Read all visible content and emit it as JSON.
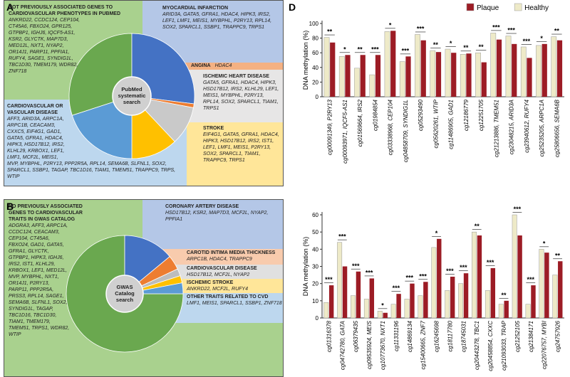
{
  "panel_labels": [
    "A",
    "B",
    "D"
  ],
  "chart_data": [
    {
      "type": "pie",
      "center_label": "PubMed systematic search",
      "boxes": [
        {
          "title": "NOT PREVIOUSLY ASSOCIATED GENES TO CARDIOVASCULAR PHENOTYPES IN PUBMED",
          "genes": "ANKRD22, CCDC124, CEP104, CT45A6, FBXO24, GPR125, GTPBP1, IGHJ6, IQCF5-AS1, KSR2, GLYCTK, MAP7D3, MED12L, NXT1, NYAP2, OR14J1, PARP11, PPFIA1, RUFY4, SAGE1, SYNDIG1L, TBC1D30, TMEM179, WDR82, ZNF718",
          "value": 30,
          "color": "#6aa84f",
          "background": "#a9d18e"
        },
        {
          "title": "MYOCARDIAL INFARCTION",
          "genes": "ARID3A, GATA5, GFRA1, HDAC4, HIPK3, IRS2, LEF1, LMF1, MEIS1, MYBPHL, P2RY13, RPL14, SOX2, SPARCL1, SSBP1, TRAPPC9, TRPS1",
          "value": 27,
          "color": "#4472c4",
          "background": "#b4c7e7"
        },
        {
          "title": "ANGINA",
          "genes": "HDAC4",
          "value": 1,
          "color": "#ed7d31",
          "background": "#f4b183"
        },
        {
          "title": "ISCHEMIC HEART DISEASE",
          "genes": "GATA5, GFRA1, HDAC4, HIPK3, HSD17B12, IRS2, KLHL29, LEF1, MEIS1, MYBPHL, P2RY13, RPL14, SOX2, SPARCL1, TIAM1, TRPS1",
          "value": 10,
          "color": "#c9c9c9",
          "background": "#e7e6e6"
        },
        {
          "title": "STROKE",
          "genes": "EIF4G1, GATA5, GFRA1, HDAC4, HIPK3, HSD17B12, IRS2, IST1, LEF1, LMF1, MEIS1, P2RY13, SOX2, SPARCL1, TIAM1, TRAPPC9, TRPS1",
          "value": 12,
          "color": "#ffc000",
          "background": "#ffe699"
        },
        {
          "title": "CARDIOVASCULAR OR VASCULAR DISEASE",
          "genes": "AFF3, ARID3A, ARPC1A, ARPC1B, CEACAM3, CXXC5, EIF4G1, GAD1, GATA5, GFRA1, HDAC4, HIPK3, HSD17B12, IRS2, KLHL29, KRBOX1, LEF1, LMF1, MCF2L, MEIS1, MVP, MYBPHL, P2RY13, PPP2R5A, RPL14, SEMA6B, SLFNL1, SOX2, SPARCL1, SSBP1, TAGAP, TBC1D16, TIAM1, TMEM51, TRAPPC9, TRPS, WTIP",
          "value": 20,
          "color": "#5b9bd5",
          "background": "#bdd7ee"
        }
      ]
    },
    {
      "type": "pie",
      "center_label": "GWAS Catalog search",
      "boxes": [
        {
          "title": "NO PREVIOUSLY ASSOCIATED GENES TO CARDIOVASCULAR TRAITS IN GWAS CATALOG",
          "genes": "ADGRA3, AFF3, ARPC1A, CCDC124, CEACAM3, CEP104, CT45A6, FBXO24, GAD1, GATA5, GFRA1, GLYCTK, GTPBP1, HIPK3, IGHJ6, IRS2, IST1, KLHL29, KRBOX1, LEF1, MED12L, MVP, MYBPHL, NXT1, OR14J1, P2RY13, PARP11, PPP2R5A, PRSS3, RPL14, SAGE1, SEMA6B, SLFNL1, SOX2, SYNDIG1L, TAGAP, TBC1D16, TBC1D30, TIAM1, TMEM179, TMEM51, TRPS1, WDR82, WTIP",
          "value": 75,
          "color": "#6aa84f",
          "background": "#a9d18e"
        },
        {
          "title": "CORONARY ARTERY DISEASE",
          "genes": "HSD17B12, KSR2, MAP7D3, MCF2L, NYAP2, PPFIA1",
          "value": 14,
          "color": "#4472c4",
          "background": "#b4c7e7"
        },
        {
          "title": "CAROTID INTIMA MEDIA THICKNESS",
          "genes": "ARPC1B, HDAC4, TRAPPC9",
          "value": 4,
          "color": "#ed7d31",
          "background": "#f8cbad"
        },
        {
          "title": "CARDIOVASCULAR DISEASE",
          "genes": "HSD17B12, MCF2L, NYAP2",
          "value": 2,
          "color": "#bdbdbd",
          "background": "#e0e0e0"
        },
        {
          "title": "ISCHEMIC STROKE",
          "genes": "ANKRD22, MCF2L, RUFY4",
          "value": 2,
          "color": "#ffc000",
          "background": "#ffe699"
        },
        {
          "title": "OTHER TRAITS RELATED TO CVD",
          "genes": "LMF1, MEIS1, SPARCL1, SSBP1, ZNF718",
          "value": 3,
          "color": "#5b9bd5",
          "background": "#bdd7ee"
        }
      ]
    },
    {
      "type": "bar",
      "ylabel": "DNA methylation (%)",
      "categories": [
        "cg00091349, P2RY13",
        "cg00093971, IQCF5-AS1",
        "cg01569664, IRS2",
        "cg01984854",
        "cg03338968, CEP104",
        "cg04858709, SYNDIG1L",
        "cg05293490",
        "cg05620261, WTIP",
        "cg11486905, GAD1",
        "cg12186779",
        "cg12251705",
        "cg21213886, TMEM51",
        "cg23048215, ARID3A",
        "cg23940612, RUFY4",
        "cg25235205, ARPC1A",
        "cg25806656, SEMA6B"
      ],
      "series": [
        {
          "name": "Plaque",
          "color": "#9c1c25",
          "values": [
            74,
            57,
            57,
            57,
            90,
            55,
            77,
            61,
            60,
            59,
            47,
            78,
            72,
            53,
            72,
            77
          ]
        },
        {
          "name": "Healthy",
          "color": "#eeeac8",
          "values": [
            81,
            55,
            39,
            30,
            89,
            48,
            85,
            63,
            65,
            58,
            60,
            87,
            83,
            68,
            70,
            82
          ]
        }
      ],
      "significance": [
        "**",
        "*",
        "**",
        "***",
        "*",
        "***",
        "***",
        "**",
        "*",
        "**",
        "**",
        "***",
        "***",
        "***",
        "*",
        "**"
      ],
      "ylim": [
        0,
        100
      ],
      "yticks": [
        0,
        20,
        40,
        60,
        80,
        100
      ]
    },
    {
      "type": "bar",
      "ylabel": "DNA methylation (%)",
      "categories": [
        "cg01316378",
        "cg04742780, GATA",
        "cg06379435",
        "cg09535924, MEIS",
        "cg10773670, NXT1",
        "cg11331196",
        "cg14869134",
        "cg15400665, ZNF7",
        "cg16245698",
        "cg18117780",
        "cg18745031",
        "cg20443278, TBC1",
        "cg20458854, CXXC",
        "cg21093033, TRAP",
        "cg21252105",
        "cg21384171",
        "cg22076757, MYBI",
        "cg24757926"
      ],
      "series": [
        {
          "color": "#9c1c25",
          "values": [
            19,
            30,
            27,
            23,
            3,
            14,
            20,
            21,
            46,
            24,
            26,
            48,
            29,
            10,
            48,
            19,
            38,
            33
          ]
        },
        {
          "color": "#eeeac8",
          "values": [
            9,
            44,
            13,
            11,
            4,
            8,
            11,
            13,
            41,
            16,
            20,
            50,
            16,
            8,
            60,
            8,
            40,
            25
          ]
        }
      ],
      "significance": [
        "***",
        "***",
        "***",
        "***",
        "*",
        "***",
        "***",
        "***",
        "*",
        "***",
        "***",
        "**",
        "***",
        "**",
        "***",
        "***",
        "*",
        "**"
      ],
      "ylim": [
        0,
        60
      ],
      "yticks": [
        0,
        10,
        20,
        30,
        40,
        50,
        60
      ]
    }
  ]
}
